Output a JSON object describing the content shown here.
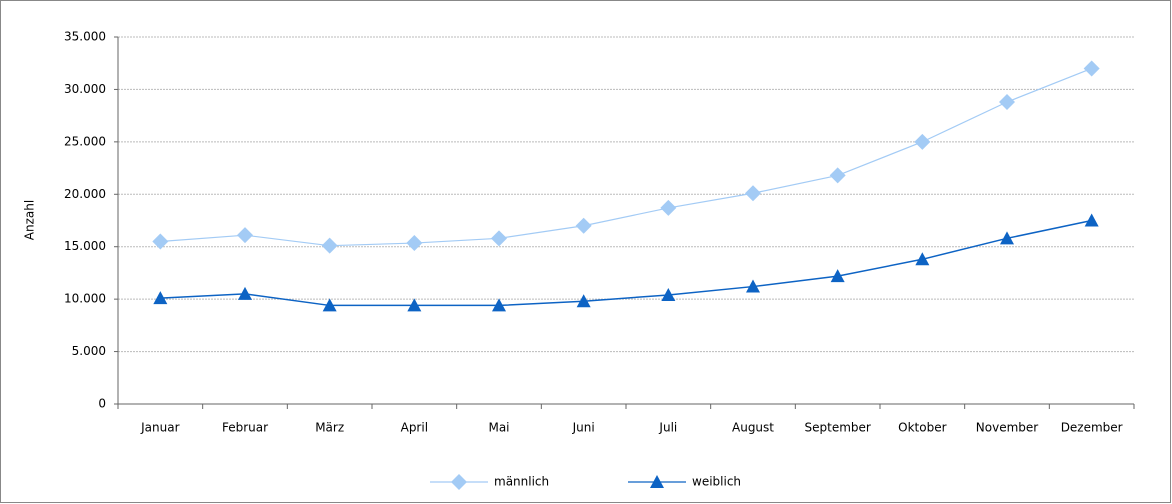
{
  "chart_data": {
    "type": "line",
    "y_label": "Anzahl",
    "categories": [
      "Januar",
      "Februar",
      "März",
      "April",
      "Mai",
      "Juni",
      "Juli",
      "August",
      "September",
      "Oktober",
      "November",
      "Dezember"
    ],
    "series": [
      {
        "name": "männlich",
        "color": "#a3cbf5",
        "marker": "diamond",
        "values": [
          15500,
          16100,
          15100,
          15350,
          15800,
          17000,
          18700,
          20100,
          21800,
          25000,
          28800,
          32000
        ]
      },
      {
        "name": "weiblich",
        "color": "#0d63c4",
        "marker": "triangle",
        "values": [
          10100,
          10500,
          9400,
          9400,
          9400,
          9800,
          10400,
          11200,
          12200,
          13800,
          15800,
          17500
        ]
      }
    ],
    "ylim": [
      0,
      35000
    ],
    "yticks": [
      0,
      {
        "value": 5000,
        "label": "5.000"
      },
      {
        "value": 10000,
        "label": "10.000"
      },
      {
        "value": 15000,
        "label": "15.000"
      },
      {
        "value": 20000,
        "label": "20.000"
      },
      {
        "value": 25000,
        "label": "25.000"
      },
      {
        "value": 30000,
        "label": "30.000"
      },
      {
        "value": 35000,
        "label": "35.000"
      }
    ],
    "grid": true,
    "legend": "bottom"
  }
}
